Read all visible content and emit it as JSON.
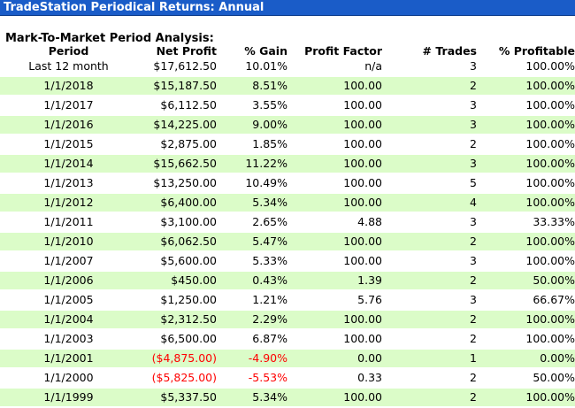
{
  "window": {
    "title": "TradeStation Periodical Returns: Annual"
  },
  "section_title": "Mark-To-Market Period Analysis:",
  "columns": [
    "Period",
    "Net Profit",
    "% Gain",
    "Profit Factor",
    "# Trades",
    "% Profitable"
  ],
  "rows": [
    {
      "period": "Last 12 month",
      "net_profit": "$17,612.50",
      "gain": "10.01%",
      "profit_factor": "n/a",
      "trades": "3",
      "profitable": "100.00%",
      "shaded": false,
      "negative": false
    },
    {
      "period": "1/1/2018",
      "net_profit": "$15,187.50",
      "gain": "8.51%",
      "profit_factor": "100.00",
      "trades": "2",
      "profitable": "100.00%",
      "shaded": true,
      "negative": false
    },
    {
      "period": "1/1/2017",
      "net_profit": "$6,112.50",
      "gain": "3.55%",
      "profit_factor": "100.00",
      "trades": "3",
      "profitable": "100.00%",
      "shaded": false,
      "negative": false
    },
    {
      "period": "1/1/2016",
      "net_profit": "$14,225.00",
      "gain": "9.00%",
      "profit_factor": "100.00",
      "trades": "3",
      "profitable": "100.00%",
      "shaded": true,
      "negative": false
    },
    {
      "period": "1/1/2015",
      "net_profit": "$2,875.00",
      "gain": "1.85%",
      "profit_factor": "100.00",
      "trades": "2",
      "profitable": "100.00%",
      "shaded": false,
      "negative": false
    },
    {
      "period": "1/1/2014",
      "net_profit": "$15,662.50",
      "gain": "11.22%",
      "profit_factor": "100.00",
      "trades": "3",
      "profitable": "100.00%",
      "shaded": true,
      "negative": false
    },
    {
      "period": "1/1/2013",
      "net_profit": "$13,250.00",
      "gain": "10.49%",
      "profit_factor": "100.00",
      "trades": "5",
      "profitable": "100.00%",
      "shaded": false,
      "negative": false
    },
    {
      "period": "1/1/2012",
      "net_profit": "$6,400.00",
      "gain": "5.34%",
      "profit_factor": "100.00",
      "trades": "4",
      "profitable": "100.00%",
      "shaded": true,
      "negative": false
    },
    {
      "period": "1/1/2011",
      "net_profit": "$3,100.00",
      "gain": "2.65%",
      "profit_factor": "4.88",
      "trades": "3",
      "profitable": "33.33%",
      "shaded": false,
      "negative": false
    },
    {
      "period": "1/1/2010",
      "net_profit": "$6,062.50",
      "gain": "5.47%",
      "profit_factor": "100.00",
      "trades": "2",
      "profitable": "100.00%",
      "shaded": true,
      "negative": false
    },
    {
      "period": "1/1/2007",
      "net_profit": "$5,600.00",
      "gain": "5.33%",
      "profit_factor": "100.00",
      "trades": "3",
      "profitable": "100.00%",
      "shaded": false,
      "negative": false
    },
    {
      "period": "1/1/2006",
      "net_profit": "$450.00",
      "gain": "0.43%",
      "profit_factor": "1.39",
      "trades": "2",
      "profitable": "50.00%",
      "shaded": true,
      "negative": false
    },
    {
      "period": "1/1/2005",
      "net_profit": "$1,250.00",
      "gain": "1.21%",
      "profit_factor": "5.76",
      "trades": "3",
      "profitable": "66.67%",
      "shaded": false,
      "negative": false
    },
    {
      "period": "1/1/2004",
      "net_profit": "$2,312.50",
      "gain": "2.29%",
      "profit_factor": "100.00",
      "trades": "2",
      "profitable": "100.00%",
      "shaded": true,
      "negative": false
    },
    {
      "period": "1/1/2003",
      "net_profit": "$6,500.00",
      "gain": "6.87%",
      "profit_factor": "100.00",
      "trades": "2",
      "profitable": "100.00%",
      "shaded": false,
      "negative": false
    },
    {
      "period": "1/1/2001",
      "net_profit": "($4,875.00)",
      "gain": "-4.90%",
      "profit_factor": "0.00",
      "trades": "1",
      "profitable": "0.00%",
      "shaded": true,
      "negative": true
    },
    {
      "period": "1/1/2000",
      "net_profit": "($5,825.00)",
      "gain": "-5.53%",
      "profit_factor": "0.33",
      "trades": "2",
      "profitable": "50.00%",
      "shaded": false,
      "negative": true
    },
    {
      "period": "1/1/1999",
      "net_profit": "$5,337.50",
      "gain": "5.34%",
      "profit_factor": "100.00",
      "trades": "2",
      "profitable": "100.00%",
      "shaded": true,
      "negative": false
    }
  ],
  "colors": {
    "title_bar": "#1a5cc8",
    "row_shade": "#dbfcc8",
    "negative": "#ff0000"
  }
}
